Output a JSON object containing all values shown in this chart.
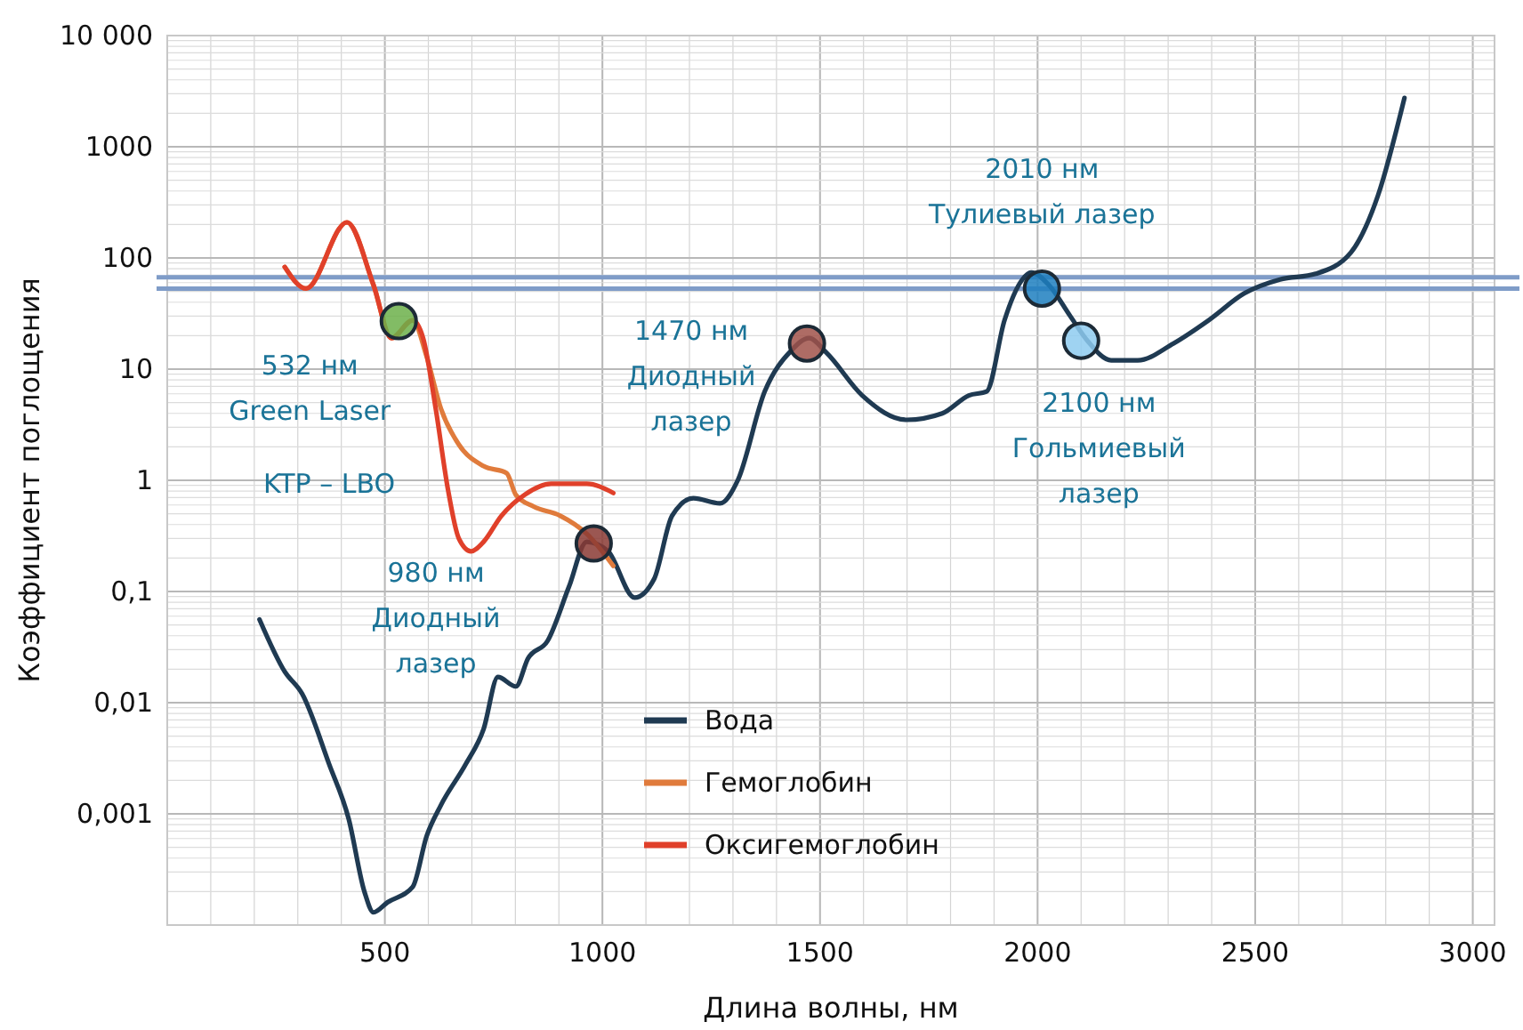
{
  "chart_data": {
    "type": "line",
    "xlabel": "Длина волны, нм",
    "ylabel": "Коэффициент поглощения",
    "log": true,
    "grid": true,
    "legend": "bottom",
    "xlim": [
      0,
      3050
    ],
    "ylim": [
      0.0001,
      10000
    ],
    "xticks": [
      500,
      1000,
      1500,
      2000,
      2500,
      3000
    ],
    "yticks": [
      {
        "value": 0.001,
        "label": "0,001"
      },
      {
        "value": 0.01,
        "label": "0,01"
      },
      {
        "value": 0.1,
        "label": "0,1"
      },
      1,
      10,
      100,
      1000,
      {
        "value": 10000,
        "label": "10 000"
      }
    ],
    "series": [
      {
        "name": "Вода",
        "color": "#1f3a52",
        "x": [
          212,
          270,
          310,
          372,
          417,
          453,
          474,
          506,
          564,
          596,
          629,
          686,
          727,
          760,
          801,
          829,
          874,
          923,
          964,
          1013,
          1074,
          1119,
          1160,
          1209,
          1270,
          1311,
          1373,
          1434,
          1475,
          1515,
          1597,
          1699,
          1781,
          1842,
          1883,
          1924,
          1965,
          1985,
          2026,
          2075,
          2116,
          2169,
          2230,
          2312,
          2393,
          2475,
          2557,
          2639,
          2720,
          2782,
          2843
        ],
        "values": [
          0.056,
          0.019,
          0.012,
          0.0028,
          0.0009,
          0.0002,
          0.00013,
          0.00016,
          0.00022,
          0.00063,
          0.0012,
          0.0028,
          0.0058,
          0.017,
          0.014,
          0.025,
          0.036,
          0.11,
          0.28,
          0.23,
          0.088,
          0.13,
          0.48,
          0.69,
          0.62,
          1,
          6.3,
          14.7,
          19,
          14,
          5.8,
          3.5,
          4,
          5.8,
          6.3,
          27.5,
          64,
          74,
          57,
          30,
          17.7,
          12,
          12,
          17,
          27.5,
          48,
          64,
          72,
          112,
          363,
          2750
        ]
      },
      {
        "name": "Гемоглобин",
        "color": "#e07b3c",
        "x": [
          270,
          319,
          413,
          474,
          515,
          564,
          596,
          629,
          670,
          727,
          780,
          801,
          842,
          903,
          964,
          1025
        ],
        "values": [
          83,
          53,
          209,
          57,
          19,
          27.5,
          13,
          4.4,
          2.1,
          1.34,
          1.16,
          0.74,
          0.58,
          0.48,
          0.33,
          0.17
        ]
      },
      {
        "name": "Оксигемоглобин",
        "color": "#e0402a",
        "x": [
          270,
          319,
          413,
          474,
          515,
          564,
          588,
          617,
          645,
          670,
          698,
          727,
          768,
          821,
          882,
          964,
          1025
        ],
        "values": [
          83,
          53,
          209,
          57,
          19,
          27.5,
          19,
          4.4,
          0.83,
          0.3,
          0.23,
          0.28,
          0.48,
          0.74,
          0.93,
          0.93,
          0.77
        ]
      },
      {
        "type": "scatter",
        "marker": "circle",
        "x": [
          532,
          980,
          1470,
          2010,
          2100
        ],
        "values": [
          27,
          0.27,
          17,
          53,
          18
        ],
        "colors": [
          "#6cb04a",
          "#8a3a34",
          "#a0524a",
          "#1d7fc0",
          "#8ecbf0"
        ]
      }
    ],
    "ref_lines": [
      {
        "axis": "y",
        "value": 67,
        "color": "#7f9cc8"
      },
      {
        "axis": "y",
        "value": 53,
        "color": "#7f9cc8"
      }
    ],
    "annotations": [
      {
        "text": "532 нм\nGreen Laser",
        "x": 532,
        "y": 27
      },
      "KTP – LBO",
      "980 нм\nДиодный\nлазер",
      {
        "text": "1470 нм\nДиодный\nлазер",
        "x": 1470,
        "y": 17
      },
      {
        "text": "2010 нм\nТулиевый лазер",
        "x": 2010,
        "y": 53
      },
      {
        "text": "2100 нм\nГольмиевый\nлазер",
        "x": 2100,
        "y": 18
      }
    ]
  }
}
